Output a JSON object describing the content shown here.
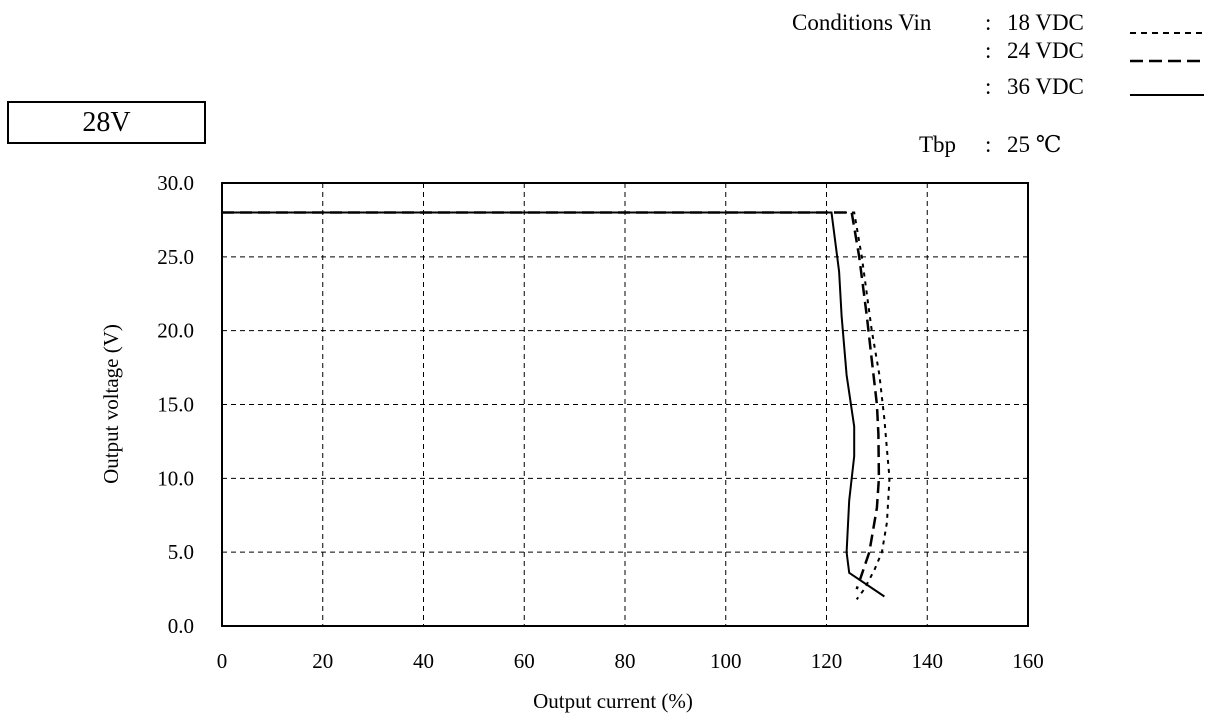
{
  "header": {
    "badge": "28V",
    "conditions_label": "Conditions Vin",
    "colon": ":",
    "vin_entries": [
      "18 VDC",
      "24 VDC",
      "36 VDC"
    ],
    "tbp_label": "Tbp",
    "tbp_value": "25 ℃"
  },
  "chart_data": {
    "type": "line",
    "title": "",
    "xlabel": "Output current (%)",
    "ylabel": "Output voltage (V)",
    "xlim": [
      0,
      160
    ],
    "ylim": [
      0,
      30
    ],
    "x_ticks": [
      "0",
      "20",
      "40",
      "60",
      "80",
      "100",
      "120",
      "140",
      "160"
    ],
    "y_ticks": [
      "0.0",
      "5.0",
      "10.0",
      "15.0",
      "20.0",
      "25.0",
      "30.0"
    ],
    "grid": true,
    "legend_position": "top-right",
    "series": [
      {
        "name": "18 VDC",
        "line_style": "dotted",
        "x": [
          0,
          125.5,
          127,
          129,
          130.5,
          131.5,
          132,
          132.5,
          132,
          131,
          129.5,
          127.5,
          126
        ],
        "y": [
          28.0,
          28.0,
          25.0,
          20.0,
          17.0,
          14.0,
          12.0,
          10.0,
          7.0,
          5.0,
          3.8,
          2.5,
          1.8
        ]
      },
      {
        "name": "24 VDC",
        "line_style": "dashed",
        "x": [
          0,
          125,
          126.5,
          128,
          129,
          130,
          130.3,
          130.4,
          130,
          128.5,
          127,
          126
        ],
        "y": [
          28.0,
          28.0,
          25.0,
          21.0,
          18.0,
          15.0,
          13.0,
          10.0,
          8.0,
          5.0,
          3.5,
          2.5
        ]
      },
      {
        "name": "36 VDC",
        "line_style": "solid",
        "x": [
          0,
          121,
          122.5,
          123,
          124,
          125.5,
          125.5,
          124.5,
          124,
          124.5,
          131.5
        ],
        "y": [
          28.0,
          28.0,
          24.0,
          21.0,
          17.0,
          13.5,
          11.5,
          8.5,
          5.0,
          3.6,
          2.0
        ]
      }
    ]
  }
}
